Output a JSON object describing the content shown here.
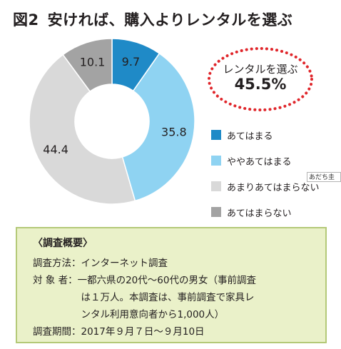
{
  "title": {
    "figure": "図2",
    "text": "安ければ、購入よりレンタルを選ぶ"
  },
  "callout": {
    "label": "レンタルを選ぶ",
    "value": "45.5%"
  },
  "tag_text": "あだち圭",
  "colors": {
    "dark_blue": "#1f8ac7",
    "light_blue": "#8fd3f2",
    "light_gray": "#d9d9d9",
    "dark_gray": "#a3a3a3",
    "callout_dots": "#e0262b",
    "summary_bg": "#eaf1c9",
    "summary_border": "#b4c978"
  },
  "chart_data": {
    "type": "pie",
    "donut": true,
    "categories": [
      "あてはまる",
      "ややあてはまる",
      "あまりあてはまらない",
      "あてはまらない"
    ],
    "values": [
      9.7,
      35.8,
      44.4,
      10.1
    ],
    "colors": [
      "#1f8ac7",
      "#8fd3f2",
      "#d9d9d9",
      "#a3a3a3"
    ],
    "labels": [
      "9.7",
      "35.8",
      "44.4",
      "10.1"
    ],
    "legend_position": "right"
  },
  "summary": {
    "heading": "〈調査概要〉",
    "lines": [
      "調査方法：インターネット調査",
      "対 象 者：一都六県の20代〜60代の男女（事前調査",
      "　　　　　は１万人。本調査は、事前調査で家具レ",
      "　　　　　ンタル利用意向者から1,000人）",
      "調査期間：2017年９月７日〜９月10日"
    ]
  }
}
